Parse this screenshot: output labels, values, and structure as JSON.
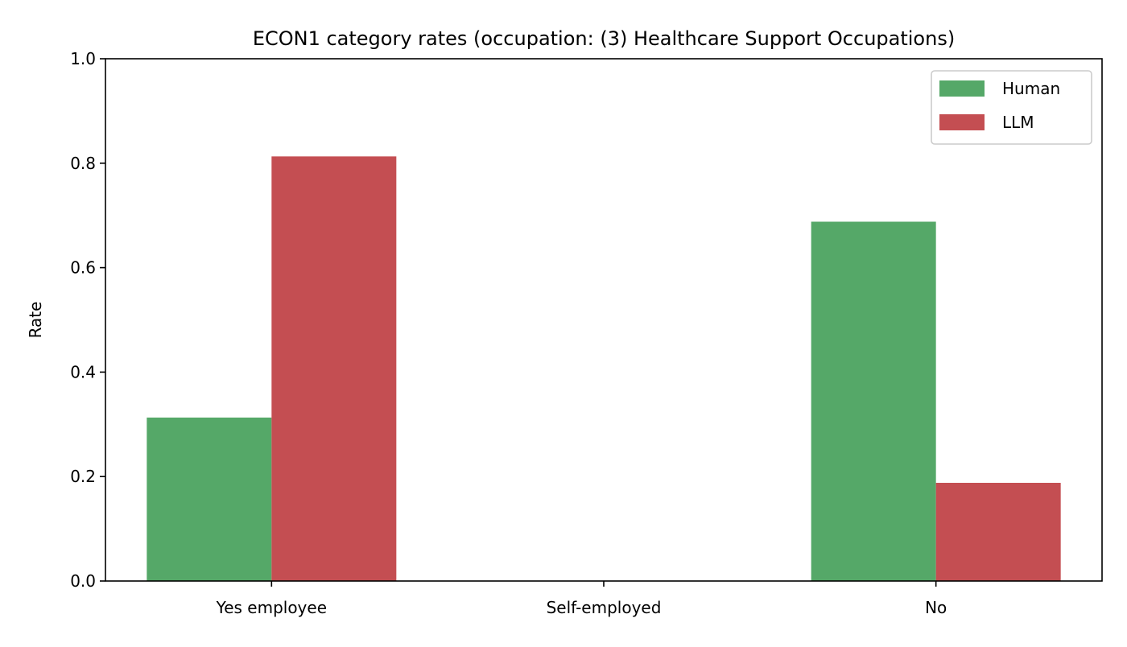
{
  "chart_data": {
    "type": "bar",
    "title": "ECON1 category rates (occupation: (3) Healthcare Support Occupations)",
    "xlabel": "",
    "ylabel": "Rate",
    "ylim": [
      0,
      1.0
    ],
    "yticks": [
      "0.0",
      "0.2",
      "0.4",
      "0.6",
      "0.8",
      "1.0"
    ],
    "categories": [
      "Yes employee",
      "Self-employed",
      "No"
    ],
    "series": [
      {
        "name": "Human",
        "color": "#55a868",
        "values": [
          0.313,
          0.0,
          0.688
        ]
      },
      {
        "name": "LLM",
        "color": "#c44e52",
        "values": [
          0.813,
          0.0,
          0.188
        ]
      }
    ],
    "legend": {
      "placement": "top-right"
    },
    "grid": false
  }
}
